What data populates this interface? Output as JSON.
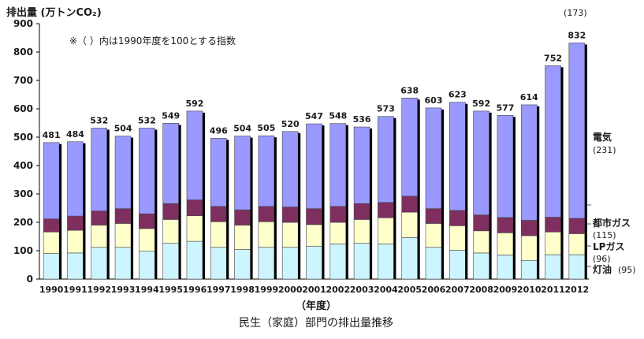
{
  "chart_data": {
    "type": "bar",
    "stacked": true,
    "title": "民生（家庭）部門の排出量推移",
    "ylabel": "排出量 (万トンCO₂)",
    "xlabel": "（年度）",
    "note": "※（ ）内は1990年度を100とする指数",
    "ylim": [
      0,
      900
    ],
    "yticks": [
      "0",
      "100",
      "200",
      "300",
      "400",
      "500",
      "600",
      "700",
      "800",
      "900"
    ],
    "categories": [
      "1990",
      "1991",
      "1992",
      "1993",
      "1994",
      "1995",
      "1996",
      "1997",
      "1998",
      "1999",
      "2000",
      "2001",
      "2002",
      "2003",
      "2004",
      "2005",
      "2006",
      "2007",
      "2008",
      "2009",
      "2010",
      "2011",
      "2012"
    ],
    "totals": [
      481,
      484,
      532,
      504,
      532,
      549,
      592,
      496,
      504,
      505,
      520,
      547,
      548,
      536,
      573,
      638,
      603,
      623,
      592,
      577,
      614,
      752,
      832
    ],
    "index_2012": "(173)",
    "series": [
      {
        "name": "灯油",
        "index": "(95)",
        "color": "#ccf5ff",
        "values": [
          90,
          92,
          112,
          112,
          98,
          126,
          133,
          112,
          104,
          112,
          112,
          116,
          124,
          126,
          124,
          146,
          112,
          102,
          92,
          85,
          66,
          86,
          86
        ]
      },
      {
        "name": "LPガス",
        "index": "(96)",
        "color": "#ffffcc",
        "values": [
          76,
          80,
          78,
          84,
          80,
          84,
          90,
          90,
          86,
          90,
          88,
          76,
          76,
          84,
          92,
          90,
          84,
          86,
          78,
          78,
          87,
          80,
          74
        ]
      },
      {
        "name": "都市ガス",
        "index": "(115)",
        "color": "#7f2f5f",
        "values": [
          46,
          50,
          50,
          52,
          52,
          56,
          56,
          54,
          54,
          54,
          54,
          56,
          56,
          56,
          54,
          56,
          52,
          54,
          56,
          54,
          54,
          52,
          54
        ]
      },
      {
        "name": "電気",
        "index": "(231)",
        "color": "#9999ff",
        "values": [
          269,
          262,
          292,
          256,
          302,
          283,
          313,
          240,
          260,
          249,
          266,
          299,
          292,
          270,
          303,
          346,
          355,
          381,
          366,
          360,
          407,
          534,
          618
        ]
      }
    ]
  }
}
